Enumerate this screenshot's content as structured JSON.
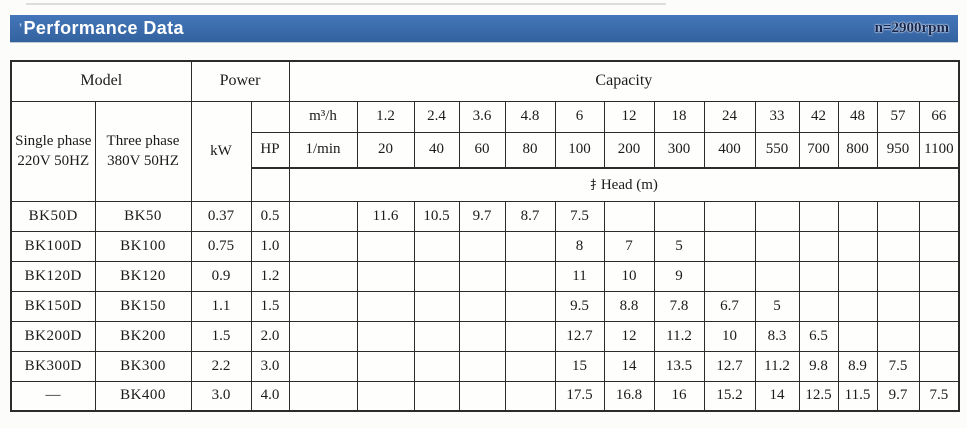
{
  "header": {
    "title_mark": "’",
    "title": "Performance Data",
    "rpm_label": "n=2900rpm",
    "bar_color": "#3a6cb3"
  },
  "table": {
    "top": {
      "model": "Model",
      "power": "Power",
      "capacity": "Capacity"
    },
    "phase_columns": [
      {
        "line1": "Single phase",
        "line2": "220V 50HZ"
      },
      {
        "line1": "Three phase",
        "line2": "380V 50HZ"
      }
    ],
    "power_units": {
      "kw": "kW",
      "hp": "HP"
    },
    "flow_units": {
      "m3h": "m³/h",
      "lmin": "1/min"
    },
    "flow_m3h": [
      "1.2",
      "2.4",
      "3.6",
      "4.8",
      "6",
      "12",
      "18",
      "24",
      "33",
      "42",
      "48",
      "57",
      "66"
    ],
    "flow_lmin": [
      "20",
      "40",
      "60",
      "80",
      "100",
      "200",
      "300",
      "400",
      "550",
      "700",
      "800",
      "950",
      "1100"
    ],
    "head_row": {
      "prefix": "扌",
      "label": "Head (m)"
    },
    "rows": [
      {
        "single": "BK50D",
        "three": "BK50",
        "kw": "0.37",
        "hp": "0.5",
        "heads": [
          "11.6",
          "10.5",
          "9.7",
          "8.7",
          "7.5",
          "",
          "",
          "",
          "",
          "",
          "",
          "",
          ""
        ]
      },
      {
        "single": "BK100D",
        "three": "BK100",
        "kw": "0.75",
        "hp": "1.0",
        "heads": [
          "",
          "",
          "",
          "",
          "8",
          "7",
          "5",
          "",
          "",
          "",
          "",
          "",
          ""
        ]
      },
      {
        "single": "BK120D",
        "three": "BK120",
        "kw": "0.9",
        "hp": "1.2",
        "heads": [
          "",
          "",
          "",
          "",
          "11",
          "10",
          "9",
          "",
          "",
          "",
          "",
          "",
          ""
        ]
      },
      {
        "single": "BK150D",
        "three": "BK150",
        "kw": "1.1",
        "hp": "1.5",
        "heads": [
          "",
          "",
          "",
          "",
          "9.5",
          "8.8",
          "7.8",
          "6.7",
          "5",
          "",
          "",
          "",
          ""
        ]
      },
      {
        "single": "BK200D",
        "three": "BK200",
        "kw": "1.5",
        "hp": "2.0",
        "heads": [
          "",
          "",
          "",
          "",
          "12.7",
          "12",
          "11.2",
          "10",
          "8.3",
          "6.5",
          "",
          "",
          ""
        ]
      },
      {
        "single": "BK300D",
        "three": "BK300",
        "kw": "2.2",
        "hp": "3.0",
        "heads": [
          "",
          "",
          "",
          "",
          "15",
          "14",
          "13.5",
          "12.7",
          "11.2",
          "9.8",
          "8.9",
          "7.5",
          ""
        ]
      },
      {
        "single": "—",
        "three": "BK400",
        "kw": "3.0",
        "hp": "4.0",
        "heads": [
          "",
          "",
          "",
          "",
          "17.5",
          "16.8",
          "16",
          "15.2",
          "14",
          "12.5",
          "11.5",
          "9.7",
          "7.5"
        ]
      }
    ]
  }
}
